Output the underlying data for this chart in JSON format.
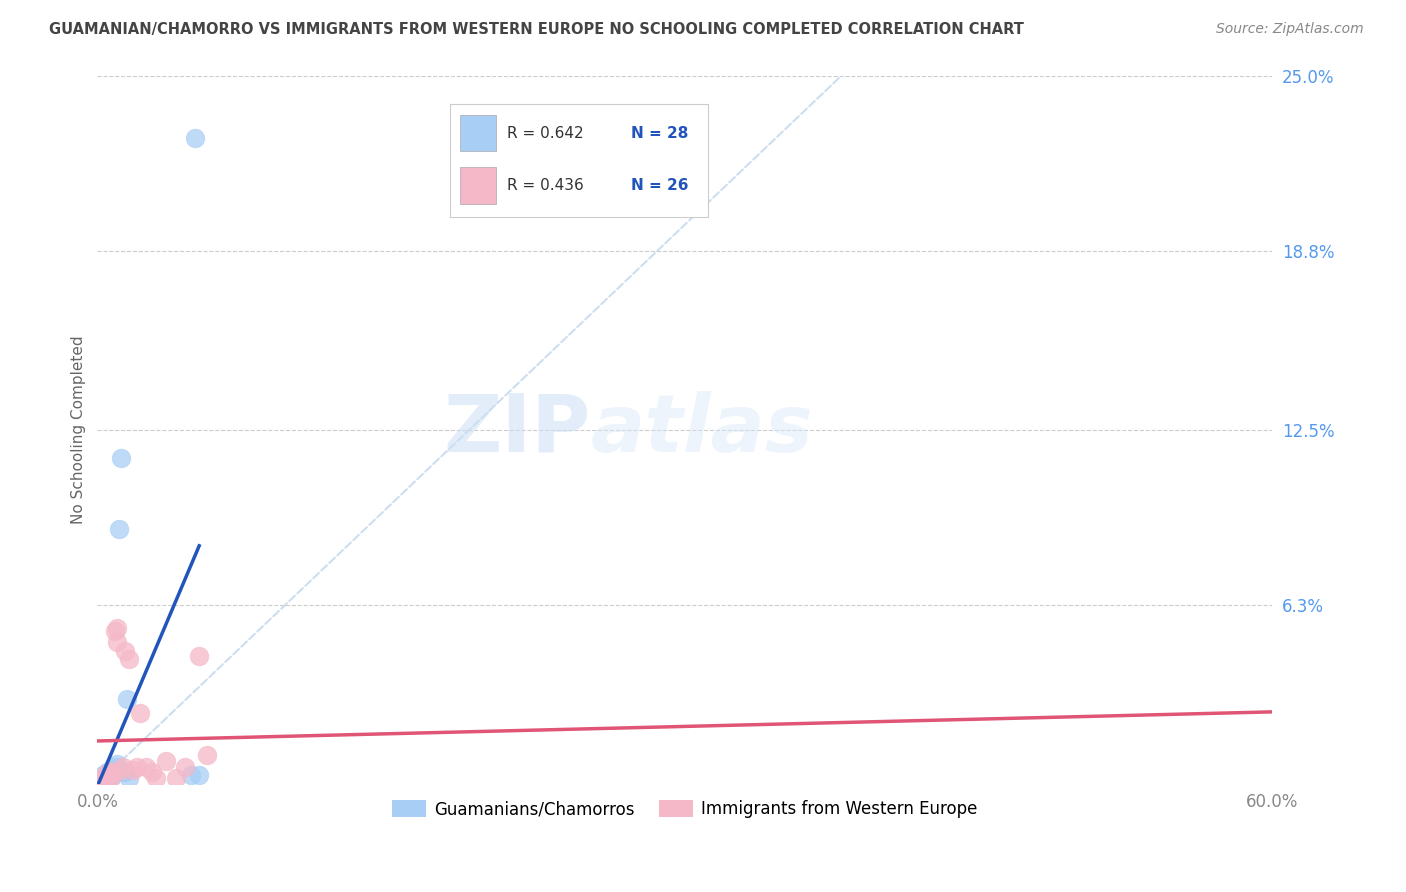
{
  "title": "GUAMANIAN/CHAMORRO VS IMMIGRANTS FROM WESTERN EUROPE NO SCHOOLING COMPLETED CORRELATION CHART",
  "source": "Source: ZipAtlas.com",
  "ylabel": "No Schooling Completed",
  "xlim": [
    0,
    0.6
  ],
  "ylim": [
    0,
    0.25
  ],
  "xtick_positions": [
    0.0,
    0.15,
    0.3,
    0.45,
    0.6
  ],
  "xtick_labels": [
    "0.0%",
    "",
    "",
    "",
    "60.0%"
  ],
  "ytick_right_labels": [
    "6.3%",
    "12.5%",
    "18.8%",
    "25.0%"
  ],
  "ytick_right_positions": [
    0.063,
    0.125,
    0.188,
    0.25
  ],
  "label_blue": "Guamanians/Chamorros",
  "label_pink": "Immigrants from Western Europe",
  "color_blue": "#a8cef5",
  "color_pink": "#f5b8c8",
  "color_blue_line": "#2255bb",
  "color_pink_line": "#e05575",
  "color_diag": "#b8d0ea",
  "blue_x": [
    0.002,
    0.003,
    0.003,
    0.004,
    0.004,
    0.005,
    0.005,
    0.005,
    0.006,
    0.006,
    0.007,
    0.007,
    0.007,
    0.008,
    0.008,
    0.009,
    0.009,
    0.01,
    0.01,
    0.011,
    0.012,
    0.013,
    0.014,
    0.015,
    0.016,
    0.048,
    0.05,
    0.052
  ],
  "blue_y": [
    0.001,
    0.002,
    0.003,
    0.001,
    0.002,
    0.002,
    0.003,
    0.004,
    0.002,
    0.004,
    0.003,
    0.004,
    0.005,
    0.003,
    0.005,
    0.004,
    0.006,
    0.005,
    0.007,
    0.09,
    0.115,
    0.004,
    0.004,
    0.03,
    0.002,
    0.003,
    0.228,
    0.003
  ],
  "pink_x": [
    0.002,
    0.004,
    0.004,
    0.005,
    0.006,
    0.006,
    0.007,
    0.008,
    0.009,
    0.01,
    0.01,
    0.012,
    0.013,
    0.014,
    0.016,
    0.018,
    0.02,
    0.022,
    0.025,
    0.028,
    0.03,
    0.035,
    0.04,
    0.045,
    0.052,
    0.056
  ],
  "pink_y": [
    0.001,
    0.002,
    0.003,
    0.002,
    0.003,
    0.004,
    0.002,
    0.004,
    0.054,
    0.055,
    0.05,
    0.005,
    0.006,
    0.047,
    0.044,
    0.005,
    0.006,
    0.025,
    0.006,
    0.004,
    0.002,
    0.008,
    0.002,
    0.006,
    0.045,
    0.01
  ],
  "watermark_zip": "ZIP",
  "watermark_atlas": "atlas",
  "background_color": "#ffffff",
  "grid_color": "#cccccc",
  "title_color": "#444444",
  "source_color": "#888888",
  "ylabel_color": "#666666",
  "tick_color": "#888888",
  "right_tick_color": "#5599ee",
  "legend_text_color": "#333333",
  "legend_n_color": "#2255bb",
  "legend_border_color": "#cccccc"
}
